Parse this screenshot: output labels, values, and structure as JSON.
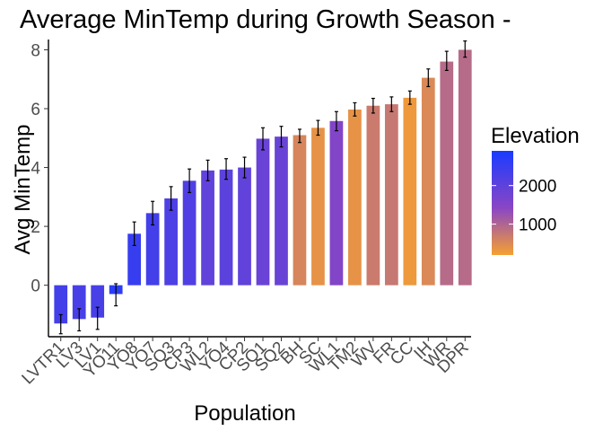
{
  "chart_data": {
    "type": "bar",
    "title": "Average MinTemp during Growth Season -",
    "xlabel": "Population",
    "ylabel": "Avg MinTemp",
    "ylim": [
      -1.75,
      8.35
    ],
    "yticks": [
      0,
      2,
      4,
      6,
      8
    ],
    "grid": false,
    "categories": [
      "LVTR1",
      "LV3",
      "LV1",
      "YO11",
      "YO8",
      "YO7",
      "SQ3",
      "CP3",
      "WL2",
      "YO4",
      "CP2",
      "SQ1",
      "SQ2",
      "BH",
      "SC",
      "WL1",
      "TM2",
      "WV",
      "FR",
      "CC",
      "IH",
      "WR",
      "DPR"
    ],
    "values": [
      -1.3,
      -1.15,
      -1.1,
      -0.3,
      1.75,
      2.45,
      2.95,
      3.55,
      3.9,
      3.93,
      4.0,
      4.98,
      5.05,
      5.1,
      5.35,
      5.58,
      5.97,
      6.1,
      6.15,
      6.37,
      7.05,
      7.6,
      8.0
    ],
    "error_low": [
      -1.65,
      -1.55,
      -1.5,
      -0.7,
      1.35,
      2.05,
      2.55,
      3.15,
      3.55,
      3.6,
      3.65,
      4.6,
      4.7,
      4.85,
      5.1,
      5.25,
      5.75,
      5.85,
      5.9,
      6.15,
      6.75,
      7.3,
      7.75
    ],
    "error_high": [
      -1.0,
      -0.8,
      -0.75,
      0.05,
      2.15,
      2.85,
      3.35,
      3.95,
      4.25,
      4.3,
      4.35,
      5.35,
      5.4,
      5.3,
      5.6,
      5.9,
      6.2,
      6.35,
      6.4,
      6.6,
      7.35,
      7.95,
      8.3
    ],
    "elevation": [
      2400,
      2350,
      2350,
      2700,
      2550,
      2400,
      2280,
      2250,
      2050,
      2100,
      2050,
      1950,
      1950,
      600,
      400,
      1650,
      400,
      750,
      800,
      300,
      550,
      1000,
      1000
    ],
    "legend": {
      "title": "Elevation",
      "position": "right",
      "ticks": [
        2000,
        1000
      ],
      "range": [
        200,
        2900
      ],
      "color_high": "#1a3bff",
      "color_mid": "#8a46c4",
      "color_low": "#f6a031"
    },
    "colors": {
      "axis": "#000000",
      "tick_text": "#4d4d4d",
      "error_bar": "#000000",
      "background": "#ffffff"
    }
  }
}
